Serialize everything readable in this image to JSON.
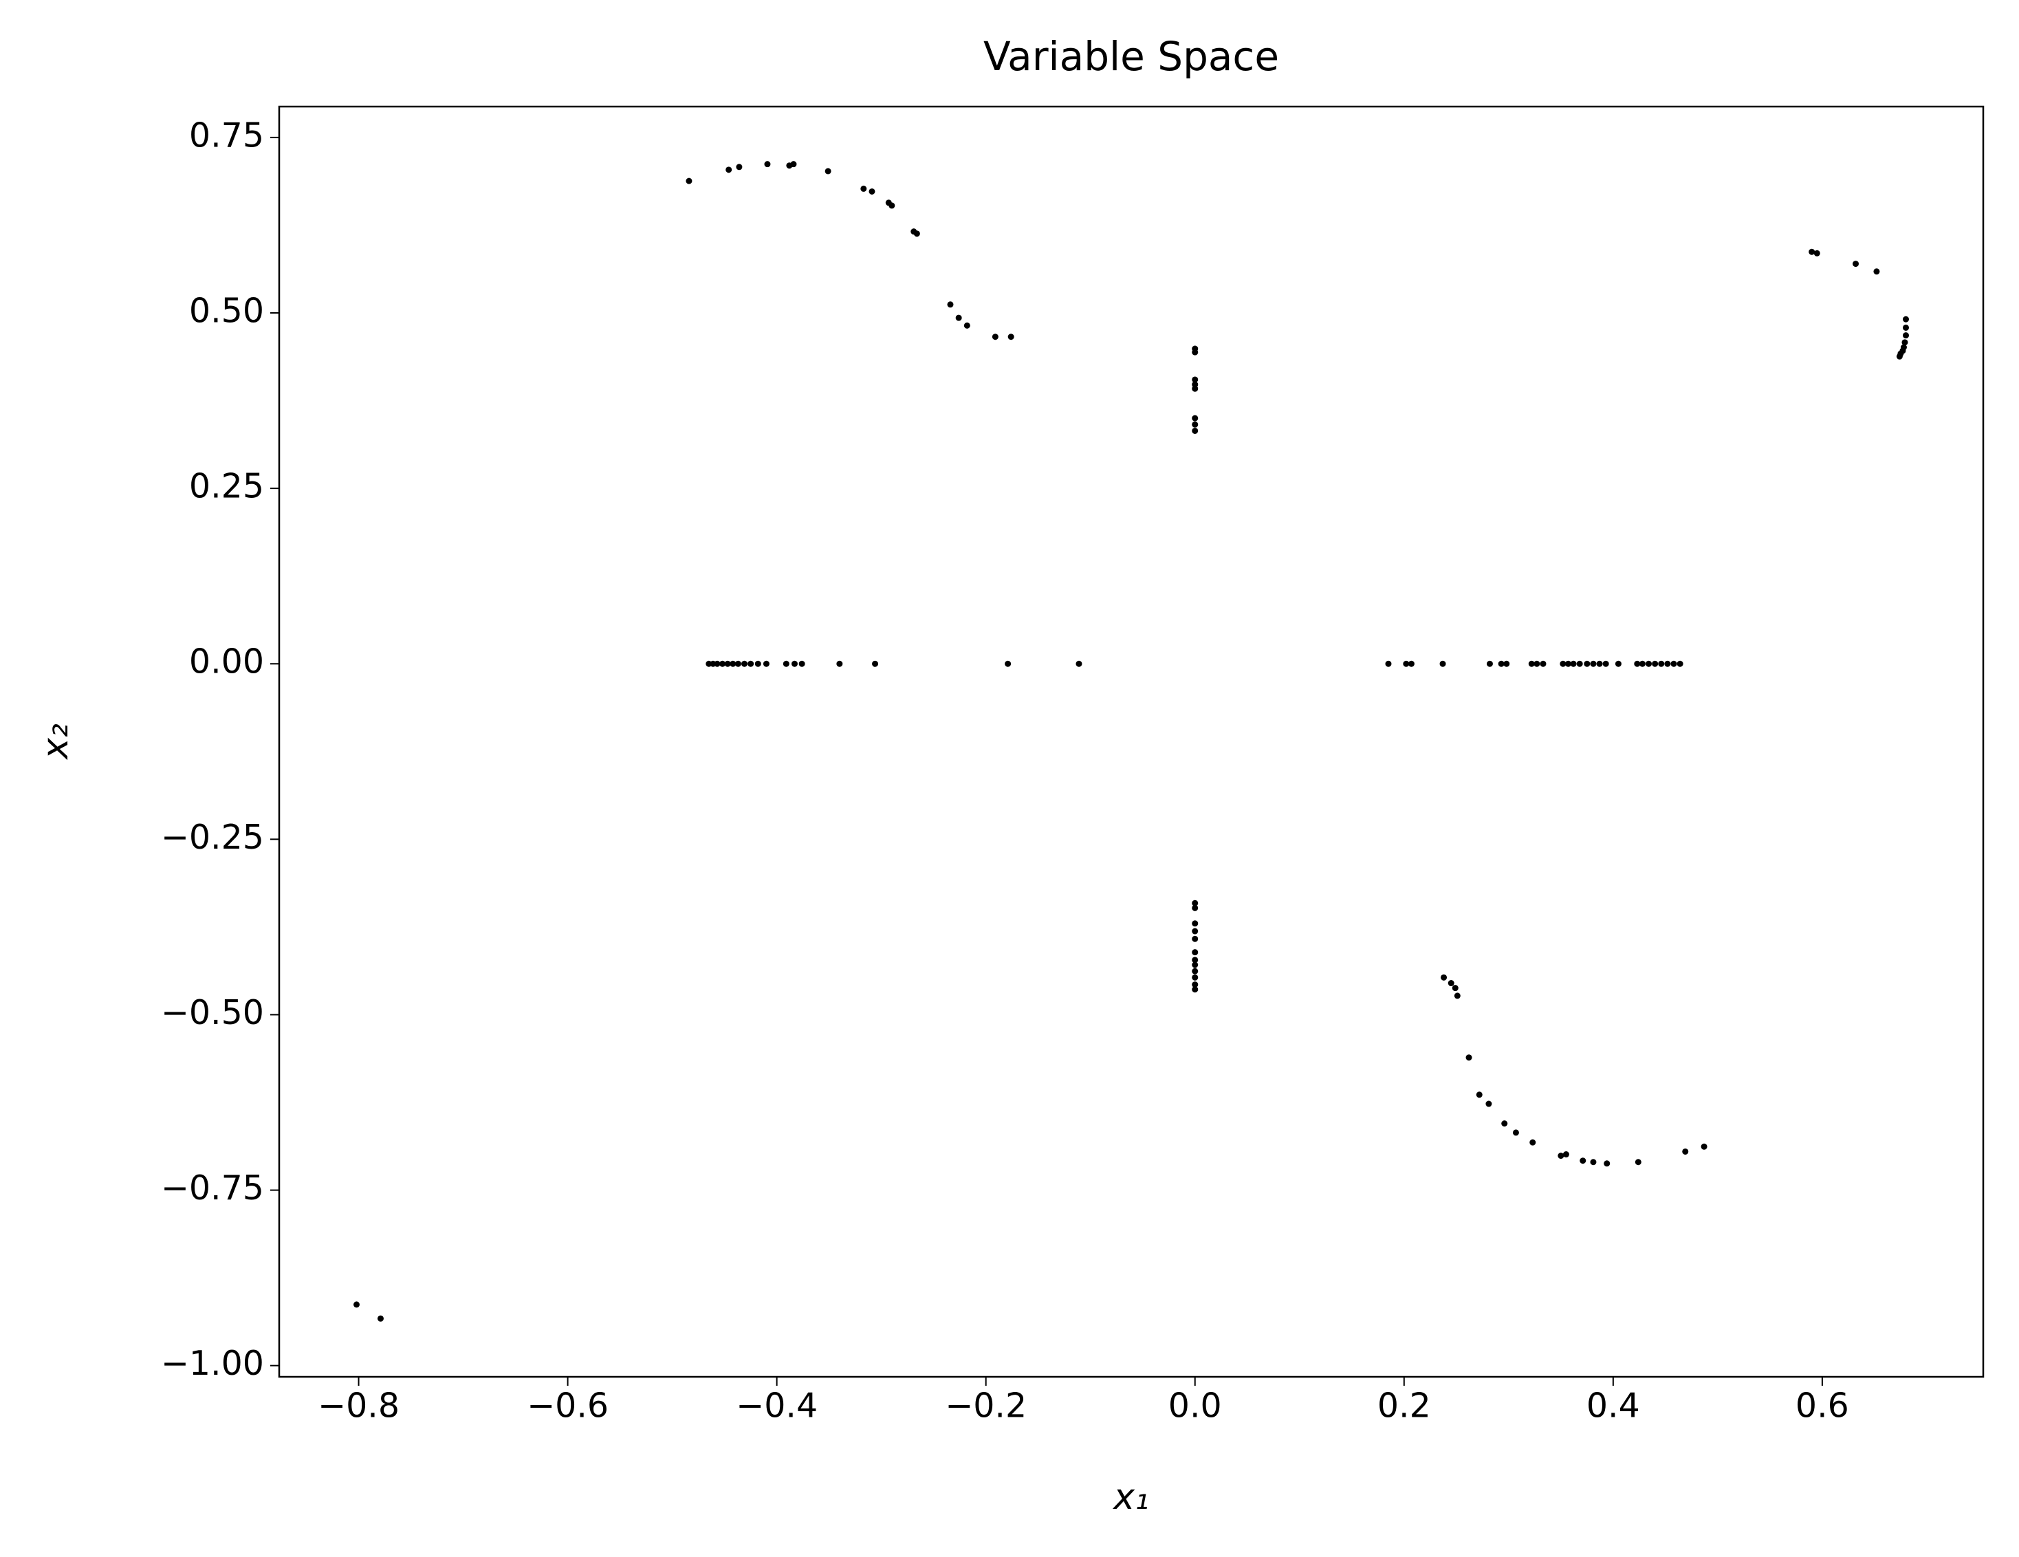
{
  "chart_data": {
    "type": "scatter",
    "title": "Variable Space",
    "xlabel": "x₁",
    "ylabel": "x₂",
    "color": "#000000",
    "xlim": [
      -0.876,
      0.754
    ],
    "ylim": [
      -1.016,
      0.794
    ],
    "xticks": [
      {
        "value": -0.8,
        "label": "−0.8"
      },
      {
        "value": -0.6,
        "label": "−0.6"
      },
      {
        "value": -0.4,
        "label": "−0.4"
      },
      {
        "value": -0.2,
        "label": "−0.2"
      },
      {
        "value": 0,
        "label": "0.0"
      },
      0.2,
      0.4,
      0.6
    ],
    "yticks": [
      {
        "value": -1,
        "label": "−1.00"
      },
      {
        "value": -0.75,
        "label": "−0.75"
      },
      {
        "value": -0.5,
        "label": "−0.50"
      },
      {
        "value": -0.25,
        "label": "−0.25"
      },
      {
        "value": 0,
        "label": "0.00"
      },
      0.25,
      {
        "value": 0.5,
        "label": "0.50"
      },
      0.75
    ],
    "x": [
      -0.484,
      -0.446,
      -0.436,
      -0.409,
      -0.388,
      -0.384,
      -0.351,
      -0.317,
      -0.309,
      -0.293,
      -0.29,
      -0.269,
      -0.266,
      -0.234,
      -0.226,
      -0.218,
      -0.191,
      -0.176,
      0,
      0,
      0,
      0,
      0,
      0,
      0,
      0,
      0.59,
      0.595,
      0.632,
      0.652,
      0.68,
      0.68,
      0.68,
      0.679,
      0.678,
      0.677,
      0.675,
      0.674,
      -0.465,
      -0.461,
      -0.457,
      -0.452,
      -0.447,
      -0.442,
      -0.437,
      -0.431,
      -0.425,
      -0.418,
      -0.41,
      -0.391,
      -0.383,
      -0.376,
      -0.34,
      -0.306,
      -0.179,
      -0.111,
      0.185,
      0.202,
      0.207,
      0.237,
      0.282,
      0.293,
      0.298,
      0.322,
      0.327,
      0.333,
      0.352,
      0.357,
      0.362,
      0.368,
      0.375,
      0.381,
      0.387,
      0.393,
      0.405,
      0.423,
      0.428,
      0.434,
      0.44,
      0.446,
      0.452,
      0.458,
      0.464,
      0,
      0,
      0,
      0,
      0,
      0,
      0,
      0,
      0,
      0,
      0,
      0,
      0.238,
      0.245,
      0.249,
      0.251,
      0.262,
      0.272,
      0.281,
      0.296,
      0.307,
      0.323,
      0.35,
      0.355,
      0.371,
      0.381,
      0.394,
      0.424,
      0.469,
      0.487,
      -0.802,
      -0.779
    ],
    "values": [
      0.688,
      0.704,
      0.708,
      0.712,
      0.71,
      0.712,
      0.702,
      0.677,
      0.673,
      0.657,
      0.653,
      0.616,
      0.613,
      0.512,
      0.493,
      0.482,
      0.466,
      0.466,
      0.449,
      0.444,
      0.405,
      0.398,
      0.392,
      0.35,
      0.341,
      0.332,
      0.587,
      0.585,
      0.57,
      0.559,
      0.491,
      0.479,
      0.468,
      0.458,
      0.451,
      0.446,
      0.442,
      0.438,
      0,
      0,
      0,
      0,
      0,
      0,
      0,
      0,
      0,
      0,
      0,
      0,
      0,
      0,
      0,
      0,
      0,
      0,
      0,
      0,
      0,
      0,
      0,
      0,
      0,
      0,
      0,
      0,
      0,
      0,
      0,
      0,
      0,
      0,
      0,
      0,
      0,
      0,
      0,
      0,
      0,
      0,
      0,
      0,
      0,
      -0.341,
      -0.348,
      -0.37,
      -0.381,
      -0.392,
      -0.411,
      -0.422,
      -0.429,
      -0.438,
      -0.447,
      -0.457,
      -0.464,
      -0.447,
      -0.455,
      -0.462,
      -0.473,
      -0.561,
      -0.614,
      -0.627,
      -0.655,
      -0.668,
      -0.682,
      -0.701,
      -0.699,
      -0.708,
      -0.71,
      -0.712,
      -0.71,
      -0.695,
      -0.688,
      -0.913,
      -0.933
    ]
  }
}
